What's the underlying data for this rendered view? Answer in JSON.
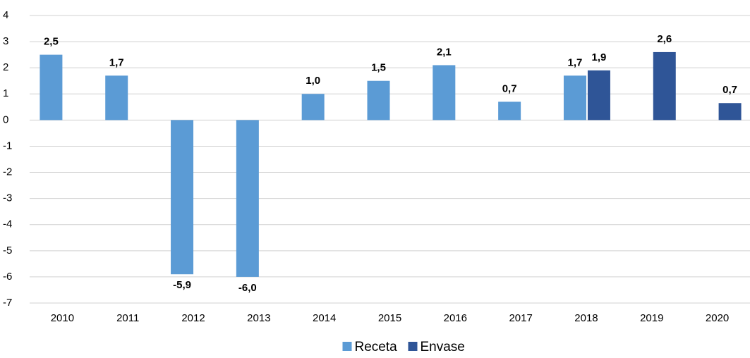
{
  "chart_data": {
    "type": "bar",
    "categories": [
      "2010",
      "2011",
      "2012",
      "2013",
      "2014",
      "2015",
      "2016",
      "2017",
      "2018",
      "2019",
      "2020"
    ],
    "series": [
      {
        "name": "Receta",
        "color": "#5b9bd5",
        "values": [
          2.5,
          1.7,
          -5.9,
          -6.0,
          1.0,
          1.5,
          2.1,
          0.7,
          1.7,
          null,
          null
        ],
        "value_labels": [
          "2,5",
          "1,7",
          "-5,9",
          "-6,0",
          "1,0",
          "1,5",
          "2,1",
          "0,7",
          "1,7",
          null,
          null
        ]
      },
      {
        "name": "Envase",
        "color": "#2f5597",
        "values": [
          null,
          null,
          null,
          null,
          null,
          null,
          null,
          null,
          1.9,
          2.6,
          0.65
        ],
        "value_labels": [
          null,
          null,
          null,
          null,
          null,
          null,
          null,
          null,
          "1,9",
          "2,6",
          "0,7"
        ]
      }
    ],
    "ylim": [
      -7,
      4
    ],
    "yticks": [
      4,
      3,
      2,
      1,
      0,
      -1,
      -2,
      -3,
      -4,
      -5,
      -6,
      -7
    ],
    "grid": true,
    "legend": "bottom"
  }
}
